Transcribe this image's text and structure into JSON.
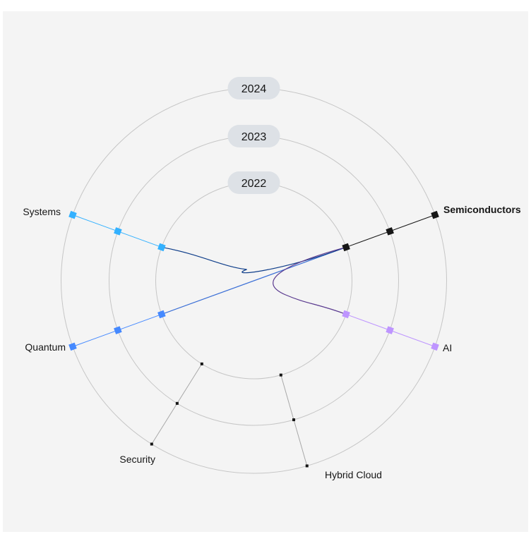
{
  "years": [
    "2022",
    "2023",
    "2024"
  ],
  "axes": [
    {
      "id": "semiconductors",
      "label": "Semiconductors",
      "active": true,
      "color": "#161616",
      "marker": "square"
    },
    {
      "id": "ai",
      "label": "AI",
      "active": false,
      "color": "#be95ff",
      "marker": "square"
    },
    {
      "id": "hybrid-cloud",
      "label": "Hybrid Cloud",
      "active": false,
      "color": "#161616",
      "marker": "dot"
    },
    {
      "id": "security",
      "label": "Security",
      "active": false,
      "color": "#161616",
      "marker": "dot"
    },
    {
      "id": "quantum",
      "label": "Quantum",
      "active": false,
      "color": "#4589ff",
      "marker": "square"
    },
    {
      "id": "systems",
      "label": "Systems",
      "active": false,
      "color": "#33b1ff",
      "marker": "square"
    }
  ],
  "colors": {
    "background": "#f4f4f4",
    "ring": "#c6c6c6",
    "pill": "#dde1e6",
    "text": "#161616",
    "connector_dark": "#0f3e8a"
  }
}
